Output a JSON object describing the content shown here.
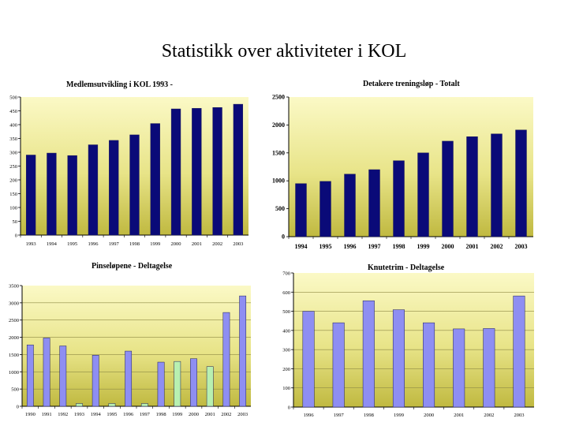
{
  "page": {
    "title": "Statistikk over aktiviteter i  KOL"
  },
  "chart_data": [
    {
      "id": "medlem",
      "type": "bar",
      "title": "Medlemsutvikling i KOL 1993 -",
      "categories": [
        "1993",
        "1994",
        "1995",
        "1996",
        "1997",
        "1998",
        "1999",
        "2000",
        "2001",
        "2002",
        "2003"
      ],
      "values": [
        290,
        297,
        288,
        327,
        343,
        363,
        404,
        457,
        459,
        462,
        474
      ],
      "ylim": [
        0,
        500
      ],
      "yticks": [
        0,
        50,
        100,
        150,
        200,
        250,
        300,
        350,
        400,
        450,
        500
      ],
      "bar_color": "#0a0a78",
      "grid": false
    },
    {
      "id": "trening",
      "type": "bar",
      "title": "Detakere treningsløp  -  Totalt",
      "categories": [
        "1994",
        "1995",
        "1996",
        "1997",
        "1998",
        "1999",
        "2000",
        "2001",
        "2002",
        "2003"
      ],
      "values": [
        950,
        990,
        1120,
        1200,
        1360,
        1500,
        1710,
        1790,
        1840,
        1910
      ],
      "ylim": [
        0,
        2500
      ],
      "yticks": [
        0,
        500,
        1000,
        1500,
        2000,
        2500
      ],
      "bar_color": "#0a0a78",
      "grid": false
    },
    {
      "id": "pinse",
      "type": "bar",
      "title": "Pinseløpene  - Deltagelse",
      "categories": [
        "1990",
        "1991",
        "1992",
        "1993",
        "1994",
        "1995",
        "1996",
        "1997",
        "1998",
        "1999",
        "2000",
        "2001",
        "2002",
        "2003"
      ],
      "values": [
        1780,
        1980,
        1750,
        80,
        1480,
        80,
        1600,
        80,
        1280,
        1300,
        1380,
        1150,
        2720,
        3200
      ],
      "bar_colors": [
        "#8e8ef2",
        "#8e8ef2",
        "#8e8ef2",
        "#b8f0b0",
        "#8e8ef2",
        "#b8f0b0",
        "#8e8ef2",
        "#b8f0b0",
        "#8e8ef2",
        "#b8f0b0",
        "#8e8ef2",
        "#b8f0b0",
        "#8e8ef2",
        "#8e8ef2"
      ],
      "ylim": [
        0,
        3500
      ],
      "yticks": [
        0,
        500,
        1000,
        1500,
        2000,
        2500,
        3000,
        3500
      ],
      "grid": true
    },
    {
      "id": "knute",
      "type": "bar",
      "title": "Knutetrim  - Deltagelse",
      "categories": [
        "1996",
        "1997",
        "1998",
        "1999",
        "2000",
        "2001",
        "2002",
        "2003"
      ],
      "values": [
        500,
        440,
        555,
        508,
        440,
        408,
        410,
        580
      ],
      "ylim": [
        0,
        700
      ],
      "yticks": [
        0,
        100,
        200,
        300,
        400,
        500,
        600,
        700
      ],
      "bar_color": "#8e8ef2",
      "grid": true
    }
  ]
}
